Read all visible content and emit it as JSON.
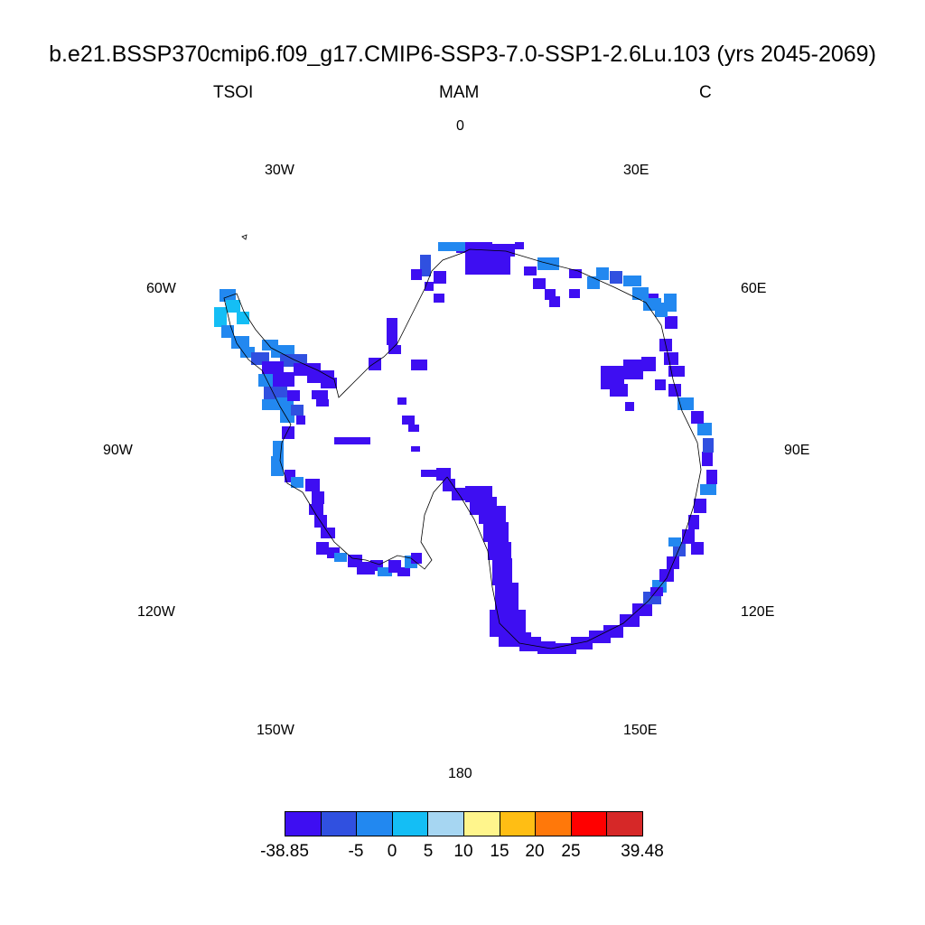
{
  "title": "b.e21.BSSP370cmip6.f09_g17.CMIP6-SSP3-7.0-SSP1-2.6Lu.103 (yrs 2045-2069)",
  "subtitle_left": "TSOI",
  "subtitle_center": "MAM",
  "subtitle_right": "C",
  "longitude_labels": [
    "0",
    "30E",
    "60E",
    "90E",
    "120E",
    "150E",
    "180",
    "150W",
    "120W",
    "90W",
    "60W",
    "30W"
  ],
  "colorbar": {
    "colors": [
      "#3e0ef2",
      "#3050e0",
      "#2288f0",
      "#14bef5",
      "#a6d6f2",
      "#fff58c",
      "#ffbe14",
      "#ff780a",
      "#ff0000",
      "#d62828"
    ],
    "labels": [
      "-38.85",
      "-5",
      "0",
      "5",
      "10",
      "15",
      "20",
      "25",
      "39.48"
    ]
  },
  "map_colors": {
    "dominant": "#3e0ef2",
    "secondary": "#3050e0",
    "tertiary": "#2288f0",
    "light": "#14bef5",
    "coastline": "#000000"
  }
}
